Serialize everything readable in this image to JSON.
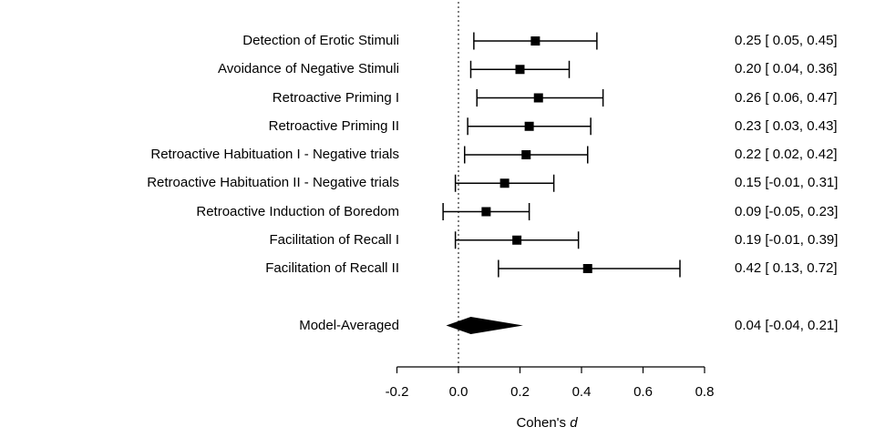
{
  "chart_data": {
    "type": "forest",
    "xlabel_text": "Cohen's ",
    "xlabel_var": "d",
    "xlim": [
      -0.2,
      0.8
    ],
    "x_ticks": [
      -0.2,
      0.0,
      0.2,
      0.4,
      0.6,
      0.8
    ],
    "x_tick_labels": [
      "-0.2",
      "0.0",
      "0.2",
      "0.4",
      "0.6",
      "0.8"
    ],
    "reference_line": 0,
    "grid": false,
    "marker_color": "#000000",
    "line_color": "#000000",
    "studies": [
      {
        "label": "Detection of Erotic Stimuli",
        "estimate": 0.25,
        "lower": 0.05,
        "upper": 0.45,
        "annotation": "0.25 [ 0.05, 0.45]"
      },
      {
        "label": "Avoidance of Negative Stimuli",
        "estimate": 0.2,
        "lower": 0.04,
        "upper": 0.36,
        "annotation": "0.20 [ 0.04, 0.36]"
      },
      {
        "label": "Retroactive Priming I",
        "estimate": 0.26,
        "lower": 0.06,
        "upper": 0.47,
        "annotation": "0.26 [ 0.06, 0.47]"
      },
      {
        "label": "Retroactive Priming II",
        "estimate": 0.23,
        "lower": 0.03,
        "upper": 0.43,
        "annotation": "0.23 [ 0.03, 0.43]"
      },
      {
        "label": "Retroactive Habituation I - Negative trials",
        "estimate": 0.22,
        "lower": 0.02,
        "upper": 0.42,
        "annotation": "0.22 [ 0.02, 0.42]"
      },
      {
        "label": "Retroactive Habituation II - Negative trials",
        "estimate": 0.15,
        "lower": -0.01,
        "upper": 0.31,
        "annotation": "0.15 [-0.01, 0.31]"
      },
      {
        "label": "Retroactive Induction of Boredom",
        "estimate": 0.09,
        "lower": -0.05,
        "upper": 0.23,
        "annotation": "0.09 [-0.05, 0.23]"
      },
      {
        "label": "Facilitation of Recall I",
        "estimate": 0.19,
        "lower": -0.01,
        "upper": 0.39,
        "annotation": "0.19 [-0.01, 0.39]"
      },
      {
        "label": "Facilitation of Recall II",
        "estimate": 0.42,
        "lower": 0.13,
        "upper": 0.72,
        "annotation": "0.42 [ 0.13, 0.72]"
      }
    ],
    "summary": {
      "label": "Model-Averaged",
      "estimate": 0.04,
      "lower": -0.04,
      "upper": 0.21,
      "annotation": "0.04 [-0.04, 0.21]"
    }
  }
}
